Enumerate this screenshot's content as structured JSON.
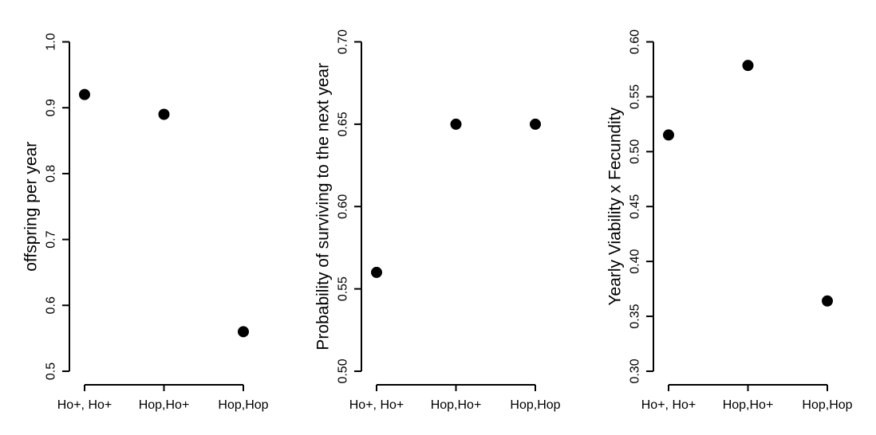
{
  "figure": {
    "background": "#ffffff",
    "axis_color": "#000000",
    "point_color": "#000000",
    "text_color": "#000000"
  },
  "chart_data": [
    {
      "type": "scatter",
      "marker": "filled-circle",
      "categories": [
        "Ho+, Ho+",
        "Hop,Ho+",
        "Hop,Hop"
      ],
      "values": [
        0.92,
        0.89,
        0.56
      ],
      "ylabel": "offspring per year",
      "yticks": [
        0.5,
        0.6,
        0.7,
        0.8,
        0.9,
        1.0
      ],
      "ytick_labels": [
        "0.5",
        "0.6",
        "0.7",
        "0.8",
        "0.9",
        "1.0"
      ],
      "ylim": [
        0.5,
        1.0
      ],
      "grid": false,
      "legend": false
    },
    {
      "type": "scatter",
      "marker": "filled-circle",
      "categories": [
        "Ho+, Ho+",
        "Hop,Ho+",
        "Hop,Hop"
      ],
      "values": [
        0.56,
        0.65,
        0.65
      ],
      "ylabel": "Probability of surviving to the next year",
      "yticks": [
        0.5,
        0.55,
        0.6,
        0.65,
        0.7
      ],
      "ytick_labels": [
        "0.50",
        "0.55",
        "0.60",
        "0.65",
        "0.70"
      ],
      "ylim": [
        0.5,
        0.7
      ],
      "grid": false,
      "legend": false
    },
    {
      "type": "scatter",
      "marker": "filled-circle",
      "categories": [
        "Ho+, Ho+",
        "Hop,Ho+",
        "Hop,Hop"
      ],
      "values": [
        0.5152,
        0.5785,
        0.364
      ],
      "ylabel": "Yearly Viability x Fecundity",
      "yticks": [
        0.3,
        0.35,
        0.4,
        0.45,
        0.5,
        0.55,
        0.6
      ],
      "ytick_labels": [
        "0.30",
        "0.35",
        "0.40",
        "0.45",
        "0.50",
        "0.55",
        "0.60"
      ],
      "ylim": [
        0.3,
        0.6
      ],
      "grid": false,
      "legend": false
    }
  ]
}
